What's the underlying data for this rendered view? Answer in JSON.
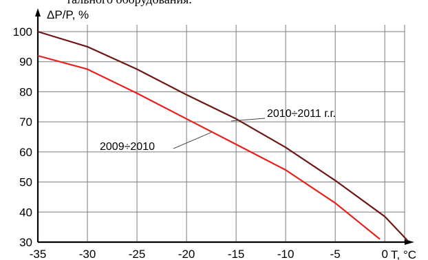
{
  "caption_fragment": "тального оборудования.",
  "chart_data": {
    "type": "line",
    "xlabel": "T, °C",
    "ylabel": "ΔP/P, %",
    "xlim": [
      -35,
      2
    ],
    "ylim": [
      30,
      100
    ],
    "x_ticks": [
      -35,
      -30,
      -25,
      -20,
      -15,
      -10,
      -5,
      0
    ],
    "y_ticks": [
      30,
      40,
      50,
      60,
      70,
      80,
      90,
      100
    ],
    "grid": true,
    "series": [
      {
        "name": "2009÷2010",
        "color": "#e8201c",
        "points": [
          [
            -35,
            92
          ],
          [
            -30,
            87.5
          ],
          [
            -25,
            79.5
          ],
          [
            -20,
            71
          ],
          [
            -15,
            62.5
          ],
          [
            -10,
            54
          ],
          [
            -5,
            43
          ],
          [
            -0.5,
            31
          ]
        ]
      },
      {
        "name": "2010÷2011 г.г.",
        "color": "#6e1515",
        "points": [
          [
            -35,
            100
          ],
          [
            -30,
            95
          ],
          [
            -25,
            87.5
          ],
          [
            -20,
            79
          ],
          [
            -15,
            71
          ],
          [
            -10,
            61.5
          ],
          [
            -5,
            50.5
          ],
          [
            0,
            38.5
          ],
          [
            2.3,
            30.5
          ]
        ]
      }
    ]
  }
}
